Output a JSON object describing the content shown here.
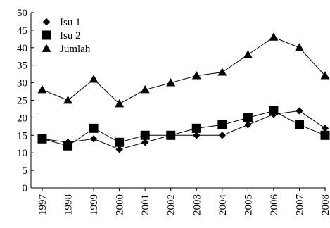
{
  "chart_data": {
    "type": "line",
    "title": "",
    "xlabel": "",
    "ylabel": "",
    "x": [
      "1997",
      "1998",
      "1999",
      "2000",
      "2001",
      "2002",
      "2003",
      "2004",
      "2005",
      "2006",
      "2007",
      "2008"
    ],
    "ylim": [
      0,
      50
    ],
    "yticks": [
      0,
      5,
      10,
      15,
      20,
      25,
      30,
      35,
      40,
      45,
      50
    ],
    "grid": false,
    "legend": "top-left",
    "series": [
      {
        "name": "Isu 1",
        "marker": "diamond",
        "values": [
          14,
          13,
          14,
          11,
          13,
          15,
          15,
          15,
          18,
          21,
          22,
          17
        ]
      },
      {
        "name": "Isu 2",
        "marker": "square",
        "values": [
          14,
          12,
          17,
          13,
          15,
          15,
          17,
          18,
          20,
          22,
          18,
          15
        ]
      },
      {
        "name": "Jumlah",
        "marker": "triangle",
        "values": [
          28,
          25,
          31,
          24,
          28,
          30,
          32,
          33,
          38,
          43,
          40,
          32
        ]
      }
    ]
  }
}
